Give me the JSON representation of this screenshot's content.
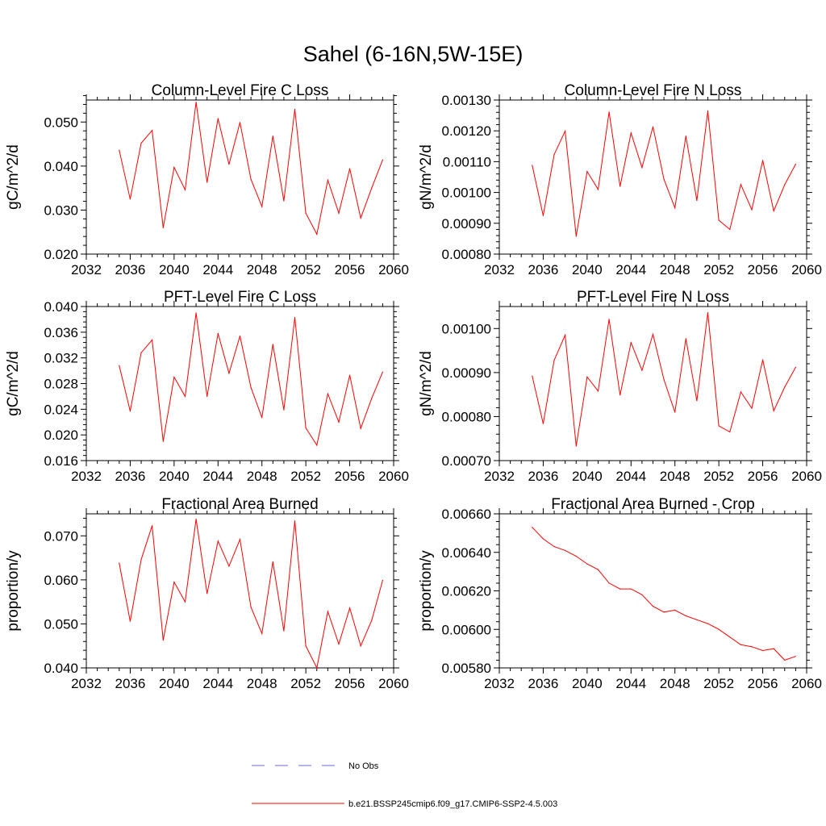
{
  "figure": {
    "title": "Sahel (6-16N,5W-15E)",
    "series_color": "#ff0000",
    "obs_color": "#6a6adf"
  },
  "legend": {
    "items": [
      {
        "label": "No Obs",
        "style": "dashed",
        "color": "#6a6adf"
      },
      {
        "label": "b.e21.BSSP245cmip6.f09_g17.CMIP6-SSP2-4.5.003",
        "style": "solid",
        "color": "#ff0000"
      }
    ]
  },
  "chart_data": [
    {
      "type": "line",
      "title": "Column-Level Fire C Loss",
      "xlabel": "",
      "ylabel": "gC/m^2/d",
      "xlim": [
        2032,
        2060
      ],
      "ylim": [
        0.02,
        0.055
      ],
      "xticks": [
        2032,
        2036,
        2040,
        2044,
        2048,
        2052,
        2056,
        2060
      ],
      "xtick_labels": [
        "2032",
        "2036",
        "2040",
        "2044",
        "2048",
        "2052",
        "2056",
        "2060"
      ],
      "yticks": [
        0.02,
        0.03,
        0.04,
        0.05
      ],
      "ytick_labels": [
        "0.020",
        "0.030",
        "0.040",
        "0.050"
      ],
      "series": [
        {
          "name": "b.e21.BSSP245cmip6.f09_g17.CMIP6-SSP2-4.5.003",
          "x": [
            2035,
            2036,
            2037,
            2038,
            2039,
            2040,
            2041,
            2042,
            2043,
            2044,
            2045,
            2046,
            2047,
            2048,
            2049,
            2050,
            2051,
            2052,
            2053,
            2054,
            2055,
            2056,
            2057,
            2058,
            2059
          ],
          "values": [
            0.0436,
            0.0325,
            0.0452,
            0.0481,
            0.026,
            0.0397,
            0.0346,
            0.0545,
            0.0363,
            0.0508,
            0.0404,
            0.0499,
            0.037,
            0.0308,
            0.0468,
            0.0321,
            0.0529,
            0.0293,
            0.0245,
            0.0368,
            0.0293,
            0.0394,
            0.0282,
            0.035,
            0.0414
          ]
        }
      ]
    },
    {
      "type": "line",
      "title": "Column-Level Fire N Loss",
      "xlabel": "",
      "ylabel": "gN/m^2/d",
      "xlim": [
        2032,
        2060
      ],
      "ylim": [
        0.0008,
        0.0013
      ],
      "xticks": [
        2032,
        2036,
        2040,
        2044,
        2048,
        2052,
        2056,
        2060
      ],
      "xtick_labels": [
        "2032",
        "2036",
        "2040",
        "2044",
        "2048",
        "2052",
        "2056",
        "2060"
      ],
      "yticks": [
        0.0008,
        0.0009,
        0.001,
        0.0011,
        0.0012,
        0.0013
      ],
      "ytick_labels": [
        "0.00080",
        "0.00090",
        "0.00100",
        "0.00110",
        "0.00120",
        "0.00130"
      ],
      "series": [
        {
          "name": "b.e21.BSSP245cmip6.f09_g17.CMIP6-SSP2-4.5.003",
          "x": [
            2035,
            2036,
            2037,
            2038,
            2039,
            2040,
            2041,
            2042,
            2043,
            2044,
            2045,
            2046,
            2047,
            2048,
            2049,
            2050,
            2051,
            2052,
            2053,
            2054,
            2055,
            2056,
            2057,
            2058,
            2059
          ],
          "values": [
            0.001088,
            0.000925,
            0.001123,
            0.001199,
            0.000858,
            0.001068,
            0.00101,
            0.001261,
            0.00102,
            0.001193,
            0.001081,
            0.001213,
            0.001043,
            0.00095,
            0.001183,
            0.000974,
            0.001265,
            0.00091,
            0.00088,
            0.001026,
            0.000944,
            0.001104,
            0.00094,
            0.001025,
            0.001092
          ]
        }
      ]
    },
    {
      "type": "line",
      "title": "PFT-Level Fire C Loss",
      "xlabel": "",
      "ylabel": "gC/m^2/d",
      "xlim": [
        2032,
        2060
      ],
      "ylim": [
        0.016,
        0.04
      ],
      "xticks": [
        2032,
        2036,
        2040,
        2044,
        2048,
        2052,
        2056,
        2060
      ],
      "xtick_labels": [
        "2032",
        "2036",
        "2040",
        "2044",
        "2048",
        "2052",
        "2056",
        "2060"
      ],
      "yticks": [
        0.016,
        0.02,
        0.024,
        0.028,
        0.032,
        0.036,
        0.04
      ],
      "ytick_labels": [
        "0.016",
        "0.020",
        "0.024",
        "0.028",
        "0.032",
        "0.036",
        "0.040"
      ],
      "series": [
        {
          "name": "b.e21.BSSP245cmip6.f09_g17.CMIP6-SSP2-4.5.003",
          "x": [
            2035,
            2036,
            2037,
            2038,
            2039,
            2040,
            2041,
            2042,
            2043,
            2044,
            2045,
            2046,
            2047,
            2048,
            2049,
            2050,
            2051,
            2052,
            2053,
            2054,
            2055,
            2056,
            2057,
            2058,
            2059
          ],
          "values": [
            0.0308,
            0.0237,
            0.0328,
            0.0348,
            0.019,
            0.029,
            0.026,
            0.039,
            0.026,
            0.0358,
            0.0296,
            0.0354,
            0.0274,
            0.0227,
            0.0341,
            0.0239,
            0.0383,
            0.0211,
            0.0184,
            0.0264,
            0.022,
            0.0293,
            0.021,
            0.0257,
            0.0298
          ]
        }
      ]
    },
    {
      "type": "line",
      "title": "PFT-Level Fire N Loss",
      "xlabel": "",
      "ylabel": "gN/m^2/d",
      "xlim": [
        2032,
        2060
      ],
      "ylim": [
        0.0007,
        0.00105
      ],
      "xticks": [
        2032,
        2036,
        2040,
        2044,
        2048,
        2052,
        2056,
        2060
      ],
      "xtick_labels": [
        "2032",
        "2036",
        "2040",
        "2044",
        "2048",
        "2052",
        "2056",
        "2060"
      ],
      "yticks": [
        0.0007,
        0.0008,
        0.0009,
        0.001
      ],
      "ytick_labels": [
        "0.00070",
        "0.00080",
        "0.00090",
        "0.00100"
      ],
      "series": [
        {
          "name": "b.e21.BSSP245cmip6.f09_g17.CMIP6-SSP2-4.5.003",
          "x": [
            2035,
            2036,
            2037,
            2038,
            2039,
            2040,
            2041,
            2042,
            2043,
            2044,
            2045,
            2046,
            2047,
            2048,
            2049,
            2050,
            2051,
            2052,
            2053,
            2054,
            2055,
            2056,
            2057,
            2058,
            2059
          ],
          "values": [
            0.000892,
            0.000784,
            0.000928,
            0.000985,
            0.000733,
            0.00089,
            0.000858,
            0.001021,
            0.000849,
            0.000968,
            0.000905,
            0.000987,
            0.000884,
            0.00081,
            0.000977,
            0.000836,
            0.001036,
            0.000779,
            0.000765,
            0.000856,
            0.000819,
            0.000929,
            0.000813,
            0.000867,
            0.000912
          ]
        }
      ]
    },
    {
      "type": "line",
      "title": "Fractional Area Burned",
      "xlabel": "",
      "ylabel": "proportion/y",
      "xlim": [
        2032,
        2060
      ],
      "ylim": [
        0.04,
        0.075
      ],
      "xticks": [
        2032,
        2036,
        2040,
        2044,
        2048,
        2052,
        2056,
        2060
      ],
      "xtick_labels": [
        "2032",
        "2036",
        "2040",
        "2044",
        "2048",
        "2052",
        "2056",
        "2060"
      ],
      "yticks": [
        0.04,
        0.05,
        0.06,
        0.07
      ],
      "ytick_labels": [
        "0.040",
        "0.050",
        "0.060",
        "0.070"
      ],
      "series": [
        {
          "name": "b.e21.BSSP245cmip6.f09_g17.CMIP6-SSP2-4.5.003",
          "x": [
            2035,
            2036,
            2037,
            2038,
            2039,
            2040,
            2041,
            2042,
            2043,
            2044,
            2045,
            2046,
            2047,
            2048,
            2049,
            2050,
            2051,
            2052,
            2053,
            2054,
            2055,
            2056,
            2057,
            2058,
            2059
          ],
          "values": [
            0.0638,
            0.0506,
            0.0646,
            0.0723,
            0.0463,
            0.0595,
            0.055,
            0.0738,
            0.0569,
            0.0688,
            0.0631,
            0.0692,
            0.0538,
            0.0478,
            0.0641,
            0.0484,
            0.0734,
            0.045,
            0.04,
            0.0528,
            0.0454,
            0.0536,
            0.045,
            0.0508,
            0.0599
          ]
        }
      ]
    },
    {
      "type": "line",
      "title": "Fractional Area Burned - Crop",
      "xlabel": "",
      "ylabel": "proportion/y",
      "xlim": [
        2032,
        2060
      ],
      "ylim": [
        0.0058,
        0.0066
      ],
      "xticks": [
        2032,
        2036,
        2040,
        2044,
        2048,
        2052,
        2056,
        2060
      ],
      "xtick_labels": [
        "2032",
        "2036",
        "2040",
        "2044",
        "2048",
        "2052",
        "2056",
        "2060"
      ],
      "yticks": [
        0.0058,
        0.006,
        0.0062,
        0.0064,
        0.0066
      ],
      "ytick_labels": [
        "0.00580",
        "0.00600",
        "0.00620",
        "0.00640",
        "0.00660"
      ],
      "series": [
        {
          "name": "b.e21.BSSP245cmip6.f09_g17.CMIP6-SSP2-4.5.003",
          "x": [
            2035,
            2036,
            2037,
            2038,
            2039,
            2040,
            2041,
            2042,
            2043,
            2044,
            2045,
            2046,
            2047,
            2048,
            2049,
            2050,
            2051,
            2052,
            2053,
            2054,
            2055,
            2056,
            2057,
            2058,
            2059
          ],
          "values": [
            0.00653,
            0.00647,
            0.00643,
            0.00641,
            0.00638,
            0.00634,
            0.00631,
            0.00624,
            0.00621,
            0.00621,
            0.00618,
            0.00612,
            0.00609,
            0.0061,
            0.00607,
            0.00605,
            0.00603,
            0.006,
            0.00596,
            0.00592,
            0.00591,
            0.00589,
            0.0059,
            0.00584,
            0.00586
          ]
        }
      ]
    }
  ]
}
